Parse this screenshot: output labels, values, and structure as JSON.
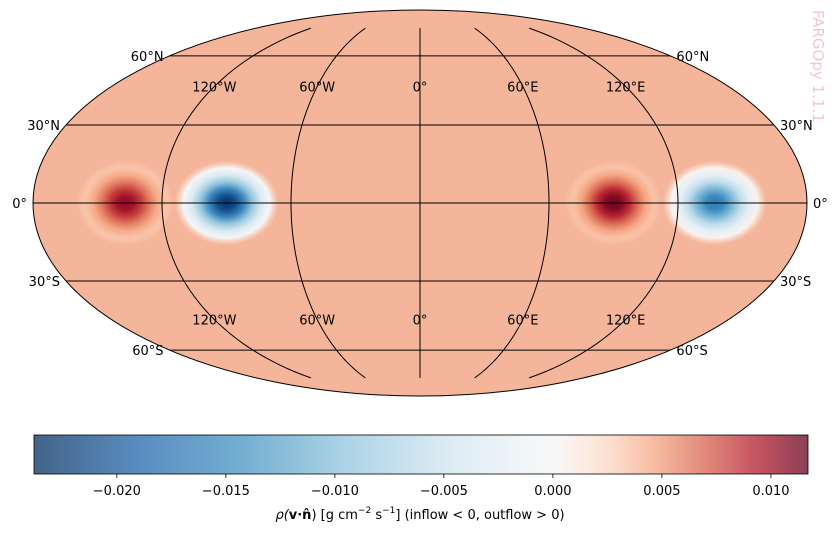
{
  "chart_data": {
    "type": "heatmap",
    "projection": "Mollweide",
    "title": "",
    "watermark": "FARGOpy 1.1.1",
    "colormap": "RdBu_r",
    "lat_ticks": [
      "60°N",
      "30°N",
      "0°",
      "30°S",
      "60°S"
    ],
    "lon_ticks": [
      "120°W",
      "60°W",
      "0°",
      "60°E",
      "120°E"
    ],
    "lat_values": [
      60,
      30,
      0,
      -30,
      -60
    ],
    "lon_values": [
      -120,
      -60,
      0,
      60,
      120
    ],
    "colorbar": {
      "label_prefix": "ρ(",
      "label_vec": "v·n̂",
      "label_suffix": ") [g cm",
      "label_exp1": "−2",
      "label_mid": " s",
      "label_exp2": "−1",
      "label_end": "] (inflow < 0,  outflow > 0)",
      "vmin": -0.0238,
      "vmax": 0.0117,
      "ticks": [
        -0.02,
        -0.015,
        -0.01,
        -0.005,
        0.0,
        0.005,
        0.01
      ],
      "tick_labels": [
        "−0.020",
        "−0.015",
        "−0.010",
        "−0.005",
        "0.000",
        "0.005",
        "0.010"
      ]
    },
    "background_value": 0.0025,
    "features": [
      {
        "type": "outflow",
        "lon": -137,
        "lat": 0,
        "peak": 0.0105
      },
      {
        "type": "inflow",
        "lon": -90,
        "lat": 0,
        "peak": -0.0235
      },
      {
        "type": "outflow",
        "lon": 90,
        "lat": 0,
        "peak": 0.0115
      },
      {
        "type": "inflow",
        "lon": 137,
        "lat": 0,
        "peak": -0.017
      }
    ]
  }
}
